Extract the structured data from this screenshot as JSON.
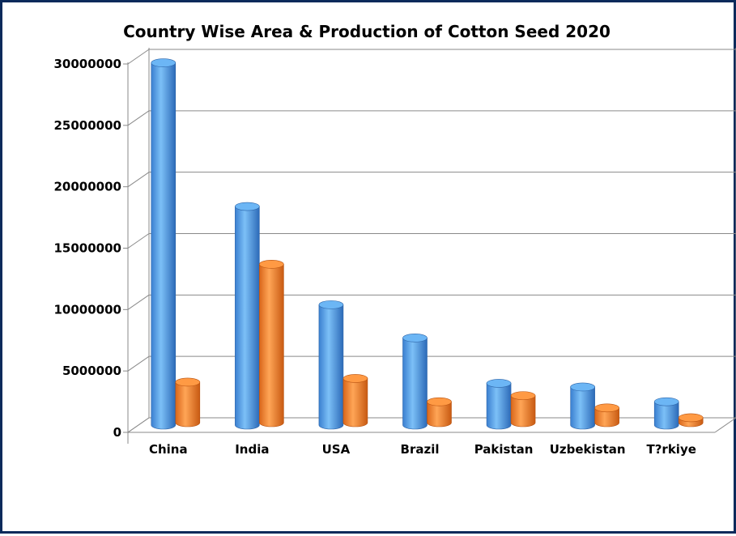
{
  "chart_data": {
    "type": "bar",
    "title": "Country Wise Area & Production of Cotton Seed 2020",
    "xlabel": "",
    "ylabel": "",
    "categories": [
      "China",
      "India",
      "USA",
      "Brazil",
      "Pakistan",
      "Uzbekistan",
      "T?rkiye"
    ],
    "series": [
      {
        "values": [
          29500000,
          17800000,
          9800000,
          7100000,
          3400000,
          3100000,
          1900000
        ],
        "color": "#5aa7ec"
      },
      {
        "values": [
          3300000,
          12900000,
          3600000,
          1700000,
          2200000,
          1200000,
          400000
        ],
        "color": "#f7862b"
      }
    ],
    "yticks": [
      "0",
      "5000000",
      "10000000",
      "15000000",
      "20000000",
      "25000000",
      "30000000"
    ],
    "ylim": [
      0,
      30000000
    ],
    "grid": true,
    "legend": "none",
    "style": "3d-cylinder"
  }
}
